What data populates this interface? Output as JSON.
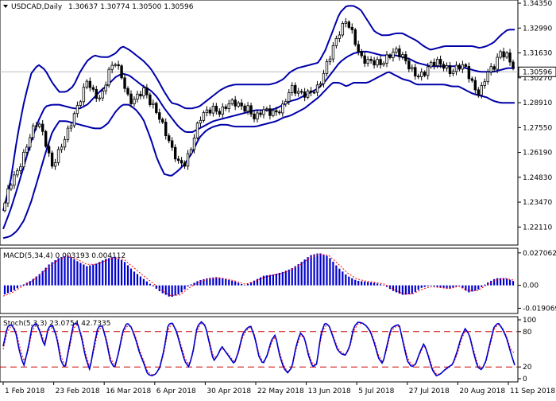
{
  "header": {
    "symbol": "USDCAD,Daily",
    "ohlc": "1.30637 1.30774 1.30500 1.30596"
  },
  "chart_data": [
    {
      "type": "candlestick",
      "panel": "price",
      "title": "USDCAD,Daily",
      "ylim": [
        1.2121,
        1.3435
      ],
      "y_ticks": [
        "1.34350",
        "1.32990",
        "1.31630",
        "1.30270",
        "1.28910",
        "1.27550",
        "1.26190",
        "1.24830",
        "1.23470",
        "1.22110"
      ],
      "current_price": "1.30596",
      "indicators": [
        "Bollinger Bands (20, 2)"
      ],
      "x_ticks": [
        "1 Feb 2018",
        "23 Feb 2018",
        "16 Mar 2018",
        "6 Apr 2018",
        "30 Apr 2018",
        "22 May 2018",
        "13 Jun 2018",
        "5 Jul 2018",
        "27 Jul 2018",
        "20 Aug 2018",
        "11 Sep 2018"
      ],
      "close_path": [
        1.23,
        1.244,
        1.252,
        1.262,
        1.272,
        1.278,
        1.269,
        1.255,
        1.262,
        1.27,
        1.282,
        1.292,
        1.301,
        1.292,
        1.292,
        1.307,
        1.311,
        1.301,
        1.29,
        1.293,
        1.296,
        1.288,
        1.284,
        1.276,
        1.264,
        1.255,
        1.256,
        1.268,
        1.28,
        1.283,
        1.286,
        1.285,
        1.288,
        1.288,
        1.287,
        1.287,
        1.28,
        1.284,
        1.284,
        1.285,
        1.287,
        1.296,
        1.295,
        1.295,
        1.295,
        1.296,
        1.308,
        1.32,
        1.328,
        1.333,
        1.325,
        1.315,
        1.312,
        1.31,
        1.31,
        1.316,
        1.318,
        1.313,
        1.308,
        1.305,
        1.305,
        1.309,
        1.311,
        1.31,
        1.306,
        1.308,
        1.308,
        1.3,
        1.294,
        1.304,
        1.308,
        1.318,
        1.315,
        1.306
      ],
      "bollinger_upper_path": [
        1.23,
        1.245,
        1.27,
        1.29,
        1.305,
        1.31,
        1.307,
        1.3,
        1.295,
        1.295,
        1.298,
        1.306,
        1.312,
        1.315,
        1.314,
        1.314,
        1.316,
        1.32,
        1.318,
        1.315,
        1.312,
        1.308,
        1.302,
        1.295,
        1.289,
        1.288,
        1.286,
        1.286,
        1.287,
        1.29,
        1.293,
        1.296,
        1.298,
        1.299,
        1.299,
        1.299,
        1.299,
        1.299,
        1.299,
        1.3,
        1.302,
        1.306,
        1.308,
        1.309,
        1.31,
        1.311,
        1.318,
        1.328,
        1.338,
        1.342,
        1.342,
        1.34,
        1.334,
        1.328,
        1.326,
        1.326,
        1.327,
        1.327,
        1.325,
        1.323,
        1.32,
        1.318,
        1.319,
        1.32,
        1.32,
        1.32,
        1.32,
        1.32,
        1.319,
        1.32,
        1.322,
        1.326,
        1.329,
        1.329
      ],
      "bollinger_middle_path": [
        1.22,
        1.23,
        1.242,
        1.255,
        1.268,
        1.279,
        1.287,
        1.288,
        1.288,
        1.287,
        1.286,
        1.286,
        1.288,
        1.292,
        1.296,
        1.299,
        1.303,
        1.305,
        1.304,
        1.301,
        1.298,
        1.296,
        1.292,
        1.286,
        1.281,
        1.276,
        1.273,
        1.273,
        1.275,
        1.277,
        1.279,
        1.28,
        1.281,
        1.282,
        1.283,
        1.284,
        1.285,
        1.285,
        1.285,
        1.286,
        1.288,
        1.29,
        1.291,
        1.293,
        1.295,
        1.297,
        1.301,
        1.306,
        1.311,
        1.314,
        1.316,
        1.317,
        1.317,
        1.316,
        1.315,
        1.315,
        1.315,
        1.314,
        1.313,
        1.311,
        1.31,
        1.309,
        1.309,
        1.309,
        1.309,
        1.309,
        1.308,
        1.307,
        1.306,
        1.306,
        1.306,
        1.307,
        1.308,
        1.308
      ],
      "bollinger_lower_path": [
        1.215,
        1.216,
        1.219,
        1.225,
        1.235,
        1.248,
        1.261,
        1.273,
        1.279,
        1.279,
        1.278,
        1.277,
        1.276,
        1.275,
        1.275,
        1.278,
        1.284,
        1.288,
        1.288,
        1.285,
        1.28,
        1.27,
        1.258,
        1.25,
        1.249,
        1.252,
        1.256,
        1.262,
        1.27,
        1.274,
        1.276,
        1.277,
        1.277,
        1.276,
        1.276,
        1.276,
        1.276,
        1.277,
        1.278,
        1.279,
        1.281,
        1.282,
        1.284,
        1.286,
        1.289,
        1.292,
        1.296,
        1.3,
        1.3,
        1.298,
        1.3,
        1.3,
        1.3,
        1.302,
        1.304,
        1.306,
        1.304,
        1.302,
        1.301,
        1.299,
        1.299,
        1.299,
        1.299,
        1.299,
        1.298,
        1.298,
        1.296,
        1.294,
        1.293,
        1.292,
        1.29,
        1.289,
        1.289,
        1.289
      ]
    },
    {
      "type": "bar",
      "panel": "macd",
      "title": "MACD(5,34,4) 0.003193 0.004112",
      "y_ticks": [
        "0.027062",
        "0.00",
        "-0.019069"
      ],
      "ylim": [
        -0.0221,
        0.0296
      ],
      "histogram_path": [
        -0.008,
        -0.005,
        0.0,
        0.004,
        0.01,
        0.018,
        0.023,
        0.025,
        0.02,
        0.016,
        0.018,
        0.022,
        0.024,
        0.02,
        0.012,
        0.006,
        0.0,
        -0.006,
        -0.01,
        -0.007,
        0.0,
        0.004,
        0.006,
        0.007,
        0.005,
        0.003,
        0.0,
        0.004,
        0.008,
        0.009,
        0.011,
        0.014,
        0.019,
        0.025,
        0.027,
        0.024,
        0.015,
        0.008,
        0.004,
        0.003,
        0.002,
        0.0,
        -0.005,
        -0.008,
        -0.007,
        -0.002,
        0.0,
        -0.002,
        -0.003,
        0.0,
        -0.006,
        -0.004,
        0.002,
        0.006,
        0.006,
        0.0032
      ],
      "signal_path": [
        -0.009,
        -0.006,
        -0.001,
        0.003,
        0.009,
        0.016,
        0.0215,
        0.0245,
        0.0215,
        0.0175,
        0.0175,
        0.0205,
        0.023,
        0.0215,
        0.015,
        0.0085,
        0.0025,
        -0.004,
        -0.0085,
        -0.008,
        -0.002,
        0.0025,
        0.005,
        0.0065,
        0.0055,
        0.0035,
        0.001,
        0.003,
        0.0065,
        0.0085,
        0.01,
        0.013,
        0.0175,
        0.023,
        0.026,
        0.025,
        0.018,
        0.0105,
        0.0055,
        0.0035,
        0.0025,
        0.001,
        -0.0035,
        -0.007,
        -0.0072,
        -0.0035,
        -0.001,
        -0.0018,
        -0.0027,
        -0.0008,
        -0.0045,
        -0.0045,
        0.0005,
        0.0045,
        0.0058,
        0.0041
      ]
    },
    {
      "type": "line",
      "panel": "stochastic",
      "title": "Stoch(5,3,3) 23.0754 42.7335",
      "ylim": [
        0,
        100
      ],
      "y_ticks": [
        "100",
        "80",
        "20",
        "0"
      ],
      "levels": [
        80,
        20
      ],
      "main_path": [
        55,
        88,
        92,
        80,
        45,
        22,
        50,
        88,
        95,
        78,
        55,
        88,
        90,
        70,
        30,
        18,
        55,
        92,
        95,
        70,
        35,
        15,
        55,
        88,
        90,
        65,
        30,
        18,
        45,
        80,
        95,
        88,
        70,
        45,
        28,
        8,
        5,
        8,
        20,
        50,
        92,
        95,
        80,
        55,
        30,
        20,
        45,
        88,
        97,
        90,
        60,
        30,
        40,
        55,
        45,
        35,
        25,
        45,
        75,
        85,
        90,
        70,
        38,
        25,
        40,
        65,
        75,
        40,
        18,
        10,
        20,
        55,
        78,
        70,
        40,
        20,
        25,
        75,
        95,
        90,
        70,
        50,
        42,
        40,
        55,
        88,
        96,
        95,
        90,
        80,
        60,
        35,
        25,
        55,
        85,
        90,
        92,
        60,
        30,
        20,
        25,
        45,
        60,
        40,
        15,
        5,
        8,
        15,
        20,
        25,
        45,
        70,
        85,
        75,
        45,
        20,
        15,
        30,
        60,
        88,
        95,
        85,
        70,
        45,
        23
      ],
      "signal_path": [
        50,
        80,
        90,
        84,
        55,
        30,
        45,
        80,
        92,
        82,
        62,
        82,
        88,
        75,
        38,
        22,
        48,
        85,
        93,
        75,
        42,
        20,
        48,
        82,
        88,
        70,
        36,
        22,
        42,
        75,
        90,
        88,
        74,
        50,
        32,
        12,
        7,
        8,
        18,
        45,
        85,
        93,
        83,
        60,
        36,
        24,
        42,
        82,
        94,
        90,
        65,
        36,
        40,
        52,
        46,
        38,
        28,
        42,
        70,
        82,
        88,
        74,
        42,
        28,
        38,
        60,
        72,
        45,
        22,
        12,
        18,
        50,
        74,
        70,
        45,
        24,
        25,
        68,
        90,
        90,
        73,
        54,
        45,
        41,
        52,
        82,
        93,
        94,
        90,
        82,
        64,
        40,
        28,
        50,
        80,
        88,
        90,
        65,
        36,
        23,
        25,
        42,
        57,
        43,
        20,
        8,
        8,
        14,
        19,
        24,
        40,
        65,
        82,
        76,
        50,
        25,
        17,
        28,
        55,
        84,
        93,
        87,
        73,
        50,
        43
      ]
    }
  ],
  "colors": {
    "candle": "#000000",
    "bollinger": "#0000aa",
    "macd_histogram": "#0000cc",
    "macd_signal": "#ff0000",
    "stoch_main": "#0000cc",
    "stoch_signal": "#ff0000",
    "stoch_levels": "#cc0000",
    "price_line": "#bbbbbb"
  }
}
